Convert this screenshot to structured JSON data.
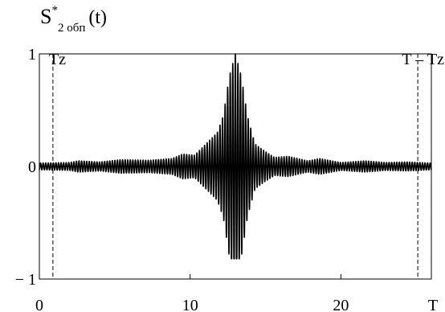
{
  "chart_data": {
    "type": "line",
    "ylabel": {
      "base": "S",
      "sup": "*",
      "sub": "2 обп",
      "arg": "(t)"
    },
    "xlabel": "T",
    "xlim": [
      0,
      26
    ],
    "ylim": [
      -1,
      1
    ],
    "x_ticks": [
      {
        "value": 0,
        "label": "0"
      },
      {
        "value": 10,
        "label": "10"
      },
      {
        "value": 20,
        "label": "20"
      }
    ],
    "y_ticks": [
      {
        "value": 1,
        "label": "1"
      },
      {
        "value": 0,
        "label": "0"
      },
      {
        "value": -1,
        "label": "− 1"
      }
    ],
    "grid_lines_y": [
      1,
      -1
    ],
    "markers": [
      {
        "x": 0.9,
        "label": "Tz",
        "style": "dashed"
      },
      {
        "x": 25.1,
        "label": "T – Tz",
        "style": "dashed"
      }
    ],
    "series": [
      {
        "signal": "amplitude-modulated oscillation",
        "color": "#000000",
        "center": 13.0,
        "peak_amplitude": 1.0,
        "min_value": -0.82,
        "carrier_period": 0.17,
        "envelope_points": [
          [
            0.0,
            0.03
          ],
          [
            2.0,
            0.035
          ],
          [
            2.6,
            0.05
          ],
          [
            4.0,
            0.04
          ],
          [
            5.4,
            0.06
          ],
          [
            7.3,
            0.055
          ],
          [
            8.8,
            0.07
          ],
          [
            9.5,
            0.11
          ],
          [
            10.3,
            0.1
          ],
          [
            11.2,
            0.22
          ],
          [
            11.8,
            0.3
          ],
          [
            12.2,
            0.45
          ],
          [
            12.6,
            0.8
          ],
          [
            13.0,
            1.0
          ],
          [
            13.4,
            0.8
          ],
          [
            13.8,
            0.45
          ],
          [
            14.3,
            0.2
          ],
          [
            14.9,
            0.14
          ],
          [
            15.6,
            0.08
          ],
          [
            16.5,
            0.09
          ],
          [
            17.8,
            0.05
          ],
          [
            18.6,
            0.07
          ],
          [
            20.0,
            0.035
          ],
          [
            21.6,
            0.05
          ],
          [
            23.0,
            0.035
          ],
          [
            24.4,
            0.04
          ],
          [
            26.0,
            0.03
          ]
        ]
      }
    ]
  }
}
